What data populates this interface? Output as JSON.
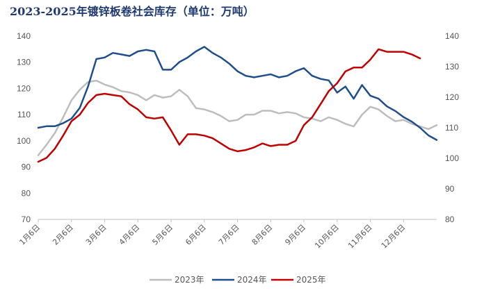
{
  "chart_data": {
    "type": "line",
    "title": "2023-2025年镀锌板卷社会库存（单位：万吨）",
    "xlabel": "",
    "ylabel": "",
    "x_ticks": [
      "1月6日",
      "2月6日",
      "3月6日",
      "4月6日",
      "5月6日",
      "6月6日",
      "7月6日",
      "8月6日",
      "9月6日",
      "10月6日",
      "11月6日",
      "12月6日"
    ],
    "x_range": [
      0,
      12
    ],
    "y_left": {
      "ylim": [
        70,
        140
      ],
      "ticks": [
        70,
        80,
        90,
        100,
        110,
        120,
        130,
        140
      ]
    },
    "y_right": {
      "ylim": [
        80,
        140
      ],
      "ticks": [
        80,
        90,
        100,
        110,
        120,
        130,
        140
      ]
    },
    "grid": false,
    "legend_position": "bottom",
    "series": [
      {
        "name": "2023年",
        "axis": "left",
        "color": "#bdbdbd",
        "x": [
          0,
          0.25,
          0.5,
          0.75,
          1,
          1.25,
          1.5,
          1.75,
          2,
          2.25,
          2.5,
          2.75,
          3,
          3.25,
          3.5,
          3.75,
          4,
          4.25,
          4.5,
          4.75,
          5,
          5.25,
          5.5,
          5.75,
          6,
          6.25,
          6.5,
          6.75,
          7,
          7.25,
          7.5,
          7.75,
          8,
          8.25,
          8.5,
          8.75,
          9,
          9.25,
          9.5,
          9.75,
          10,
          10.25,
          10.5,
          10.75,
          11,
          11.25,
          11.5,
          11.75,
          12
        ],
        "values": [
          94.5,
          98.5,
          103,
          109,
          115.5,
          119.5,
          122.5,
          123,
          121.5,
          120.5,
          119,
          118.5,
          117.5,
          115.5,
          117.5,
          116.5,
          117,
          119.5,
          117,
          112.5,
          112,
          111,
          109.5,
          107.5,
          108,
          110,
          110,
          111.5,
          111.5,
          110.5,
          111,
          110.5,
          109,
          108.5,
          107.5,
          109,
          108,
          106.5,
          105.5,
          110,
          113,
          112,
          109.5,
          107.5,
          108,
          106.5,
          105.5,
          104.5,
          106
        ]
      },
      {
        "name": "2024年",
        "axis": "right",
        "color": "#1f4e8c",
        "x": [
          0,
          0.25,
          0.5,
          0.75,
          1,
          1.25,
          1.5,
          1.75,
          2,
          2.25,
          2.5,
          2.75,
          3,
          3.25,
          3.5,
          3.75,
          4,
          4.25,
          4.5,
          4.75,
          5,
          5.25,
          5.5,
          5.75,
          6,
          6.25,
          6.5,
          6.75,
          7,
          7.25,
          7.5,
          7.75,
          8,
          8.25,
          8.5,
          8.75,
          9,
          9.25,
          9.5,
          9.75,
          10,
          10.25,
          10.5,
          10.75,
          11,
          11.25,
          11.5,
          11.75,
          12
        ],
        "values": [
          110,
          110.5,
          110.5,
          111.5,
          113,
          116.5,
          123.5,
          132.5,
          133,
          134.5,
          134,
          133.5,
          135,
          135.5,
          135,
          129,
          129,
          131.5,
          133,
          135,
          136.5,
          134.5,
          133,
          131,
          128.5,
          127,
          126.5,
          127,
          127.5,
          126.5,
          127,
          128.5,
          129.5,
          127,
          126,
          125.5,
          121.5,
          123.5,
          119.5,
          124,
          120.5,
          119.5,
          117,
          115.5,
          113.5,
          112,
          110,
          107.5,
          106
        ]
      },
      {
        "name": "2025年",
        "axis": "left",
        "color": "#c00000",
        "x": [
          0,
          0.25,
          0.5,
          0.75,
          1,
          1.25,
          1.5,
          1.75,
          2,
          2.25,
          2.5,
          2.75,
          3,
          3.25,
          3.5,
          3.75,
          4,
          4.25,
          4.5,
          4.75,
          5,
          5.25,
          5.5,
          5.75,
          6,
          6.25,
          6.5,
          6.75,
          7,
          7.25,
          7.5,
          7.75,
          8,
          8.25,
          8.5,
          8.75,
          9,
          9.25,
          9.5,
          9.75,
          10,
          10.25,
          10.5,
          10.75,
          11,
          11.25,
          11.5
        ],
        "values": [
          92,
          93.5,
          97,
          102,
          107.5,
          110,
          114.5,
          117.5,
          118,
          117.5,
          117,
          114,
          112,
          109,
          108.5,
          109,
          104,
          98.5,
          102.5,
          102.5,
          102,
          101,
          99,
          97,
          96,
          96.5,
          97.5,
          99,
          98,
          98.5,
          98.5,
          100,
          106,
          109,
          114,
          119,
          122,
          126.5,
          128,
          128,
          131,
          135,
          134,
          134,
          134,
          133,
          131.5
        ]
      }
    ]
  }
}
